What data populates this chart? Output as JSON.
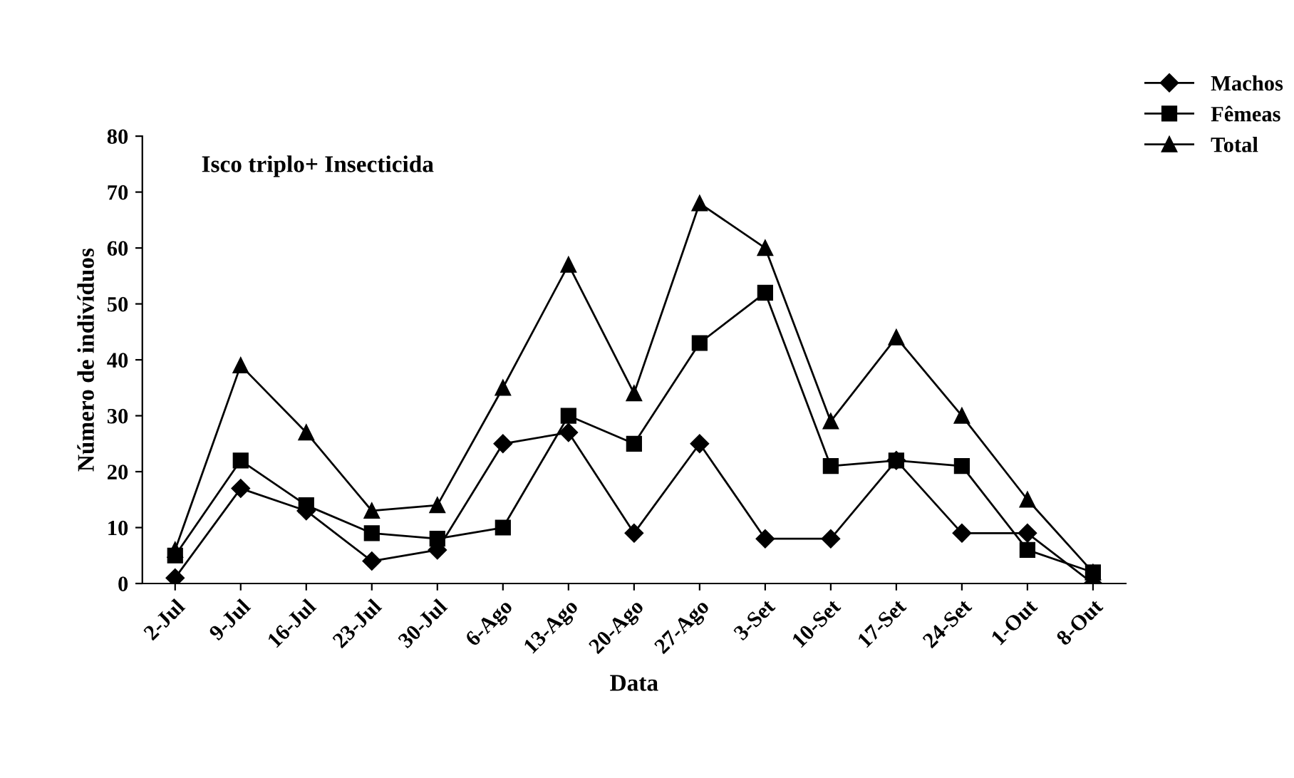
{
  "chart_data": {
    "type": "line",
    "xlabel": "Data",
    "ylabel": "Número de indivíduos",
    "annotations": [
      "Isco triplo+ Insecticida"
    ],
    "categories": [
      "2-Jul",
      "9-Jul",
      "16-Jul",
      "23-Jul",
      "30-Jul",
      "6-Ago",
      "13-Ago",
      "20-Ago",
      "27-Ago",
      "3-Set",
      "10-Set",
      "17-Set",
      "24-Set",
      "1-Out",
      "8-Out"
    ],
    "series": [
      {
        "name": "Machos",
        "color": "#000000",
        "marker": "diamond",
        "values": [
          1,
          17,
          13,
          4,
          6,
          25,
          27,
          9,
          25,
          8,
          8,
          22,
          9,
          9,
          0
        ]
      },
      {
        "name": "Fêmeas",
        "color": "#000000",
        "marker": "square",
        "values": [
          5,
          22,
          14,
          9,
          8,
          10,
          30,
          25,
          43,
          52,
          21,
          22,
          21,
          6,
          2
        ]
      },
      {
        "name": "Total",
        "color": "#000000",
        "marker": "triangle",
        "values": [
          6,
          39,
          27,
          13,
          14,
          35,
          57,
          34,
          68,
          60,
          29,
          44,
          30,
          15,
          2
        ]
      }
    ],
    "ylim": [
      0,
      80
    ],
    "yticks": [
      0,
      10,
      20,
      30,
      40,
      50,
      60,
      70,
      80
    ],
    "grid": false,
    "legend": "top right",
    "line_style": "solid"
  }
}
